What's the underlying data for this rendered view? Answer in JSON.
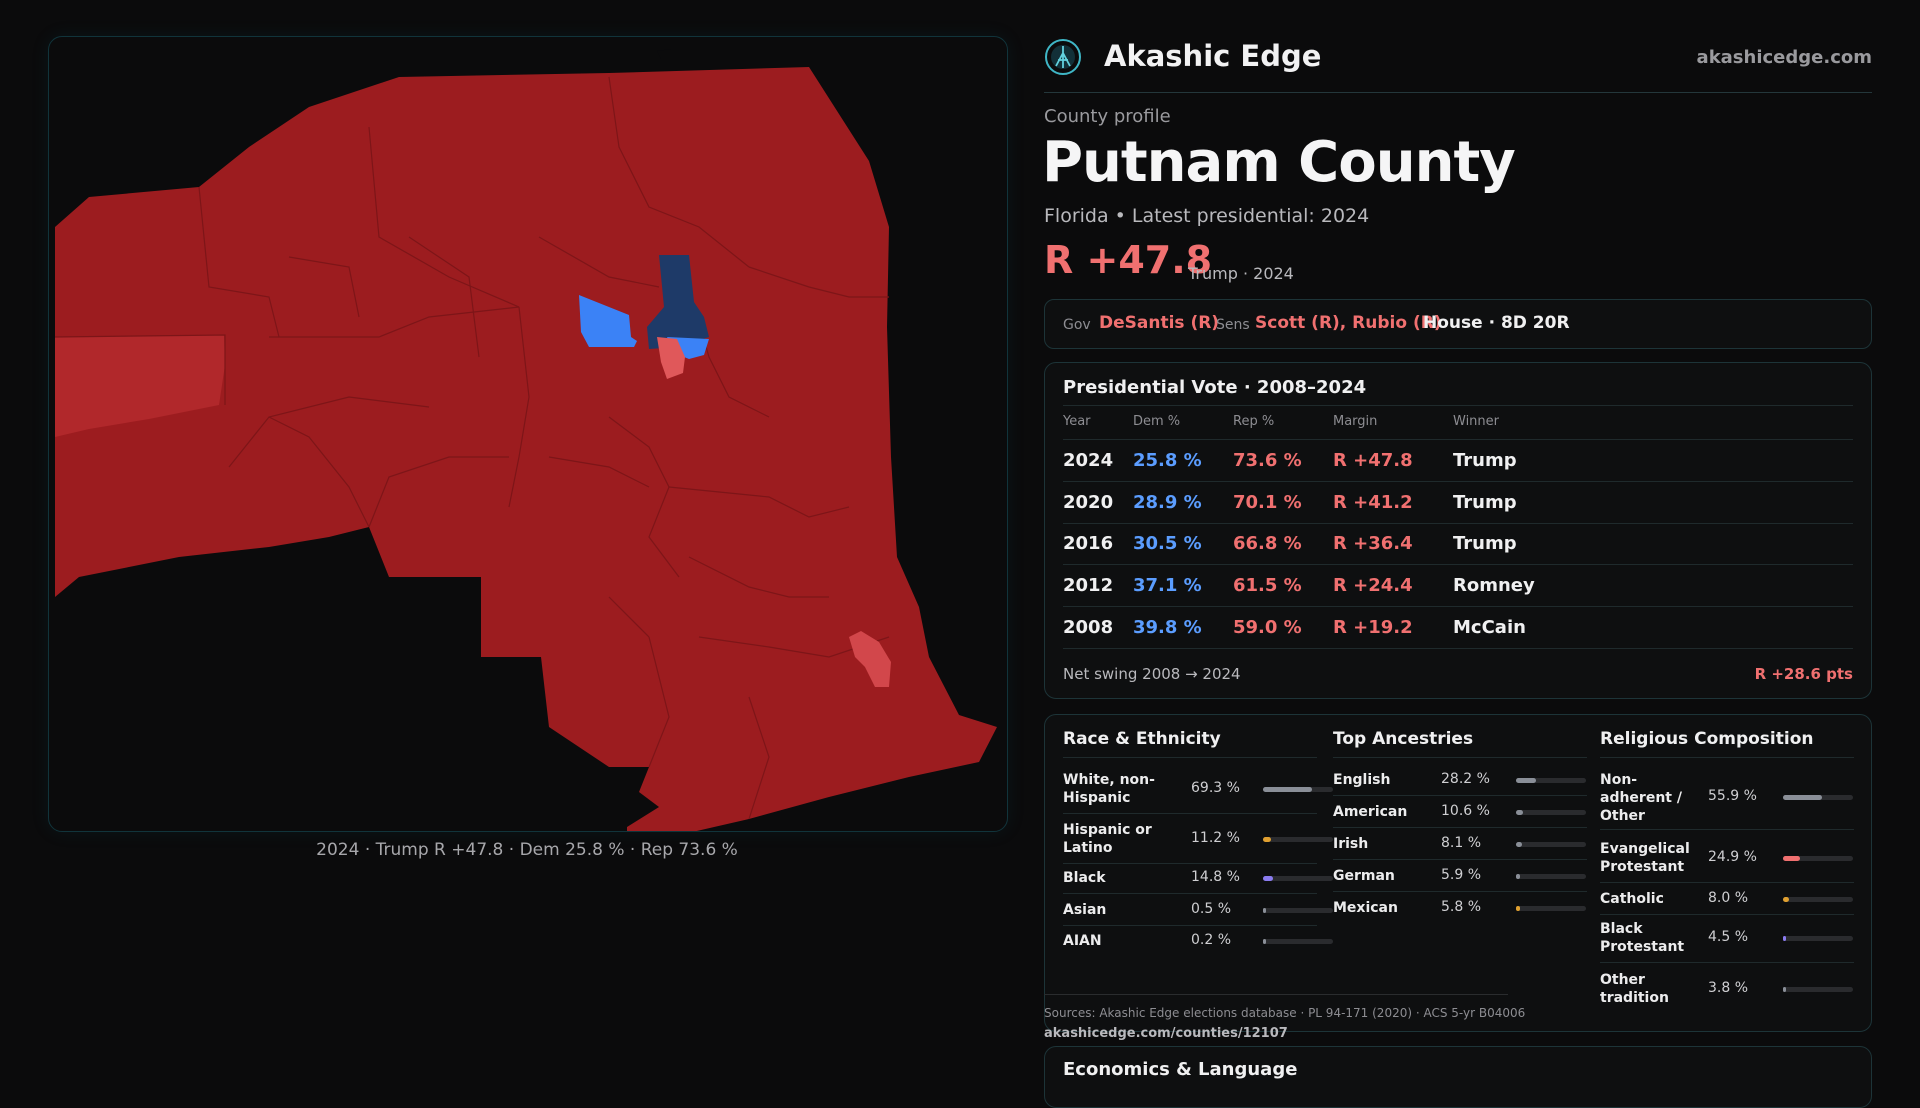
{
  "brand": {
    "name": "Akashic Edge",
    "site": "akashicedge.com"
  },
  "profile": {
    "eyebrow": "County profile",
    "title": "Putnam County",
    "subtitle": "Florida • Latest presidential: 2024",
    "margin": "R +47.8",
    "margin_note": "Trump · 2024"
  },
  "officials": {
    "gov_key": "Gov",
    "gov": "DeSantis (R)",
    "sens_key": "Sens",
    "sens": "Scott (R), Rubio (R)",
    "house": "House · 8D 20R"
  },
  "map": {
    "caption": "2024 · Trump R +47.8 · Dem 25.8 % · Rep 73.6 %",
    "colors": {
      "rep_strong": "#9c1c1f",
      "rep_mid": "#b1282b",
      "rep_light": "#e0585a",
      "dem_strong": "#1e3a68",
      "dem_light": "#3b82f6"
    }
  },
  "presidential": {
    "title": "Presidential Vote · 2008–2024",
    "headers": [
      "Year",
      "Dem %",
      "Rep %",
      "Margin",
      "Winner"
    ],
    "rows": [
      {
        "year": "2024",
        "dem": "25.8 %",
        "rep": "73.6 %",
        "margin": "R +47.8",
        "winner": "Trump"
      },
      {
        "year": "2020",
        "dem": "28.9 %",
        "rep": "70.1 %",
        "margin": "R +41.2",
        "winner": "Trump"
      },
      {
        "year": "2016",
        "dem": "30.5 %",
        "rep": "66.8 %",
        "margin": "R +36.4",
        "winner": "Trump"
      },
      {
        "year": "2012",
        "dem": "37.1 %",
        "rep": "61.5 %",
        "margin": "R +24.4",
        "winner": "Romney"
      },
      {
        "year": "2008",
        "dem": "39.8 %",
        "rep": "59.0 %",
        "margin": "R +19.2",
        "winner": "McCain"
      }
    ],
    "swing_label": "Net swing 2008 → 2024",
    "swing_value": "R +28.6 pts"
  },
  "race": {
    "title": "Race & Ethnicity",
    "items": [
      {
        "label": "White, non-Hispanic",
        "value": "69.3 %",
        "level": 0.693,
        "color": "#8a8f98"
      },
      {
        "label": "Hispanic or Latino",
        "value": "11.2 %",
        "level": 0.112,
        "color": "#e0a030"
      },
      {
        "label": "Black",
        "value": "14.8 %",
        "level": 0.148,
        "color": "#8b7cf0"
      },
      {
        "label": "Asian",
        "value": "0.5 %",
        "level": 0.005,
        "color": "#8a8f98"
      },
      {
        "label": "AIAN",
        "value": "0.2 %",
        "level": 0.002,
        "color": "#8a8f98"
      }
    ]
  },
  "ancestry": {
    "title": "Top Ancestries",
    "items": [
      {
        "label": "English",
        "value": "28.2 %",
        "level": 0.282,
        "color": "#8a8f98"
      },
      {
        "label": "American",
        "value": "10.6 %",
        "level": 0.106,
        "color": "#8a8f98"
      },
      {
        "label": "Irish",
        "value": "8.1 %",
        "level": 0.081,
        "color": "#8a8f98"
      },
      {
        "label": "German",
        "value": "5.9 %",
        "level": 0.059,
        "color": "#8a8f98"
      },
      {
        "label": "Mexican",
        "value": "5.8 %",
        "level": 0.058,
        "color": "#e0a030"
      }
    ]
  },
  "religion": {
    "title": "Religious Composition",
    "items": [
      {
        "label": "Non-adherent / Other",
        "value": "55.9 %",
        "level": 0.559,
        "color": "#8a8f98"
      },
      {
        "label": "Evangelical Protestant",
        "value": "24.9 %",
        "level": 0.249,
        "color": "#f07070"
      },
      {
        "label": "Catholic",
        "value": "8.0 %",
        "level": 0.08,
        "color": "#e0a030"
      },
      {
        "label": "Black Protestant",
        "value": "4.5 %",
        "level": 0.045,
        "color": "#8b7cf0"
      },
      {
        "label": "Other tradition",
        "value": "3.8 %",
        "level": 0.038,
        "color": "#8a8f98"
      }
    ]
  },
  "sources": {
    "text": "Sources: Akashic Edge elections database · PL 94-171 (2020) · ACS 5-yr B04006",
    "url": "akashicedge.com/counties/12107"
  },
  "economics": {
    "title": "Economics & Language"
  }
}
